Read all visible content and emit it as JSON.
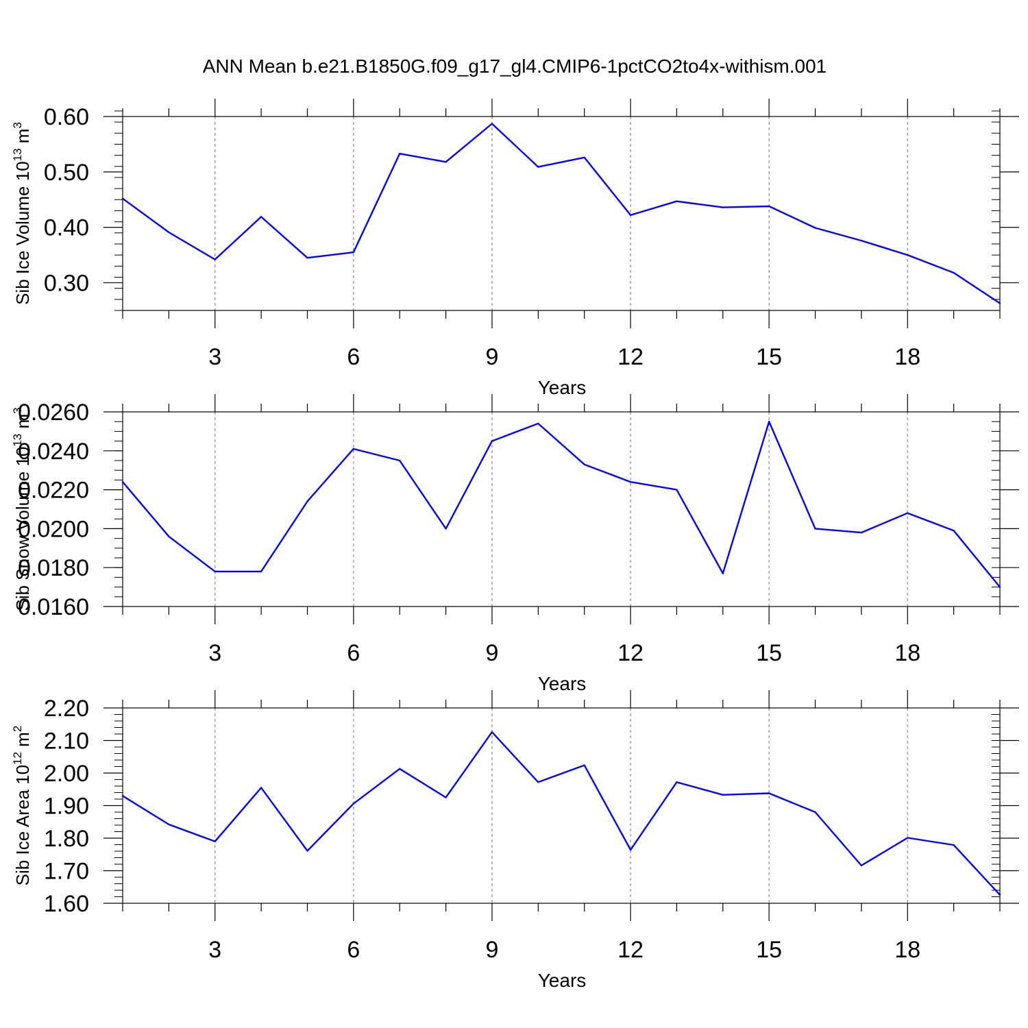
{
  "title": "ANN Mean b.e21.B1850G.f09_g17_gl4.CMIP6-1pctCO2to4x-withism.001",
  "chart_data": [
    {
      "type": "line",
      "ylabel": "Sib Ice Volume 10",
      "ylabel_exp": "13",
      "ylabel_unit": " m",
      "ylabel_unit_exp": "3",
      "xlabel": "Years",
      "xlim": [
        1,
        20
      ],
      "ylim": [
        0.25,
        0.6
      ],
      "xticks": [
        3,
        6,
        9,
        12,
        15,
        18
      ],
      "yticks": [
        0.3,
        0.4,
        0.5,
        0.6
      ],
      "ytick_labels": [
        "0.30",
        "0.40",
        "0.50",
        "0.60"
      ],
      "ytick_minor_step": 0.02,
      "line_color": "#0000ff",
      "x": [
        1,
        2,
        3,
        4,
        5,
        6,
        7,
        8,
        9,
        10,
        11,
        12,
        13,
        14,
        15,
        16,
        17,
        18,
        19,
        20
      ],
      "y": [
        0.452,
        0.391,
        0.342,
        0.419,
        0.345,
        0.355,
        0.533,
        0.518,
        0.587,
        0.509,
        0.526,
        0.422,
        0.447,
        0.436,
        0.438,
        0.399,
        0.376,
        0.35,
        0.318,
        0.263
      ]
    },
    {
      "type": "line",
      "ylabel": "Sib Snow Volume 10",
      "ylabel_exp": "13",
      "ylabel_unit": " m",
      "ylabel_unit_exp": "3",
      "xlabel": "Years",
      "xlim": [
        1,
        20
      ],
      "ylim": [
        0.016,
        0.026
      ],
      "xticks": [
        3,
        6,
        9,
        12,
        15,
        18
      ],
      "yticks": [
        0.016,
        0.018,
        0.02,
        0.022,
        0.024,
        0.026
      ],
      "ytick_labels": [
        "0.0160",
        "0.0180",
        "0.0200",
        "0.0220",
        "0.0240",
        "0.0260"
      ],
      "ytick_minor_step": 0.0005,
      "line_color": "#0000ff",
      "x": [
        1,
        2,
        3,
        4,
        5,
        6,
        7,
        8,
        9,
        10,
        11,
        12,
        13,
        14,
        15,
        16,
        17,
        18,
        19,
        20
      ],
      "y": [
        0.0224,
        0.0196,
        0.0178,
        0.0178,
        0.0214,
        0.0241,
        0.0235,
        0.02,
        0.0245,
        0.0254,
        0.0233,
        0.0224,
        0.022,
        0.0177,
        0.0255,
        0.02,
        0.0198,
        0.0208,
        0.0199,
        0.017
      ]
    },
    {
      "type": "line",
      "ylabel": "Sib Ice Area 10",
      "ylabel_exp": "12",
      "ylabel_unit": " m",
      "ylabel_unit_exp": "2",
      "xlabel": "Years",
      "xlim": [
        1,
        20
      ],
      "ylim": [
        1.6,
        2.2
      ],
      "xticks": [
        3,
        6,
        9,
        12,
        15,
        18
      ],
      "yticks": [
        1.6,
        1.7,
        1.8,
        1.9,
        2.0,
        2.1,
        2.2
      ],
      "ytick_labels": [
        "1.60",
        "1.70",
        "1.80",
        "1.90",
        "2.00",
        "2.10",
        "2.20"
      ],
      "ytick_minor_step": 0.02,
      "line_color": "#0000ff",
      "x": [
        1,
        2,
        3,
        4,
        5,
        6,
        7,
        8,
        9,
        10,
        11,
        12,
        13,
        14,
        15,
        16,
        17,
        18,
        19,
        20
      ],
      "y": [
        1.93,
        1.842,
        1.79,
        1.955,
        1.761,
        1.906,
        2.013,
        1.925,
        2.126,
        1.972,
        2.024,
        1.764,
        1.972,
        1.933,
        1.938,
        1.88,
        1.716,
        1.801,
        1.779,
        1.626
      ]
    }
  ]
}
